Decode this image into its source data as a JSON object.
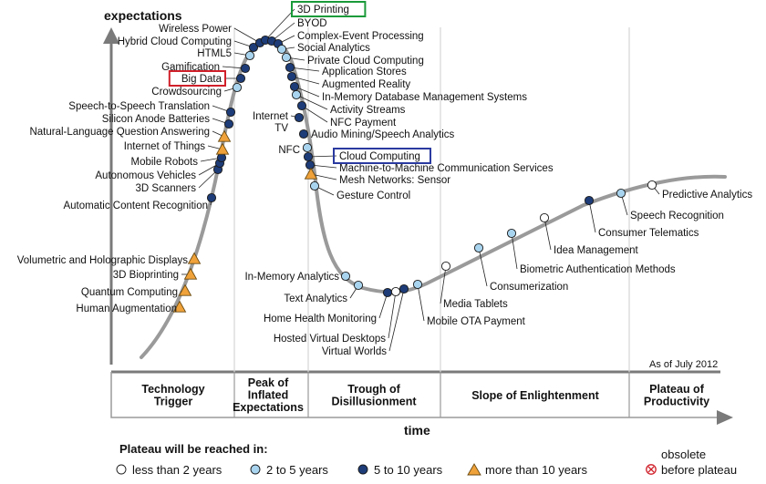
{
  "axes": {
    "y_label": "expectations",
    "x_label": "time"
  },
  "as_of": "As of July 2012",
  "phases": [
    {
      "lines": [
        "Technology",
        "Trigger"
      ]
    },
    {
      "lines": [
        "Peak of",
        "Inflated",
        "Expectations"
      ]
    },
    {
      "lines": [
        "Trough of",
        "Disillusionment"
      ]
    },
    {
      "lines": [
        "Slope of Enlightenment"
      ]
    },
    {
      "lines": [
        "Plateau of",
        "Productivity"
      ]
    }
  ],
  "legend": {
    "title": "Plateau will be reached in:",
    "items": [
      {
        "label": "less than 2 years",
        "marker": "circle-white"
      },
      {
        "label": "2 to 5 years",
        "marker": "circle-lightblue"
      },
      {
        "label": "5 to 10 years",
        "marker": "circle-darkblue"
      },
      {
        "label": "more than 10 years",
        "marker": "triangle-orange"
      }
    ],
    "obsolete_line1": "obsolete",
    "obsolete_line2": "before plateau",
    "obsolete_marker": "circled-x-red"
  },
  "colors": {
    "curve": "#9a9a9a",
    "axis": "#7a7a7a",
    "white_marker": "#ffffff",
    "light_blue": "#a9d4ef",
    "dark_blue": "#1d3c78",
    "orange": "#f0a23a",
    "red_obsolete": "#d0202a",
    "highlight_green": "#1a9a3a",
    "highlight_red": "#d0202a",
    "highlight_blue": "#2a3aa0"
  },
  "highlights": [
    {
      "tech": "3D Printing",
      "color": "green"
    },
    {
      "tech": "Big Data",
      "color": "red"
    },
    {
      "tech": "Cloud Computing",
      "color": "blue"
    }
  ],
  "technologies": [
    {
      "name": "Human Augmentation",
      "marker": "orange"
    },
    {
      "name": "Quantum Computing",
      "marker": "orange"
    },
    {
      "name": "3D Bioprinting",
      "marker": "orange"
    },
    {
      "name": "Volumetric and Holographic Displays",
      "marker": "orange"
    },
    {
      "name": "Automatic Content Recognition",
      "marker": "dark"
    },
    {
      "name": "3D Scanners",
      "marker": "dark"
    },
    {
      "name": "Autonomous Vehicles",
      "marker": "dark"
    },
    {
      "name": "Mobile Robots",
      "marker": "dark"
    },
    {
      "name": "Internet of Things",
      "marker": "orange"
    },
    {
      "name": "Natural-Language Question Answering",
      "marker": "orange"
    },
    {
      "name": "Silicon Anode Batteries",
      "marker": "dark"
    },
    {
      "name": "Speech-to-Speech Translation",
      "marker": "dark"
    },
    {
      "name": "Crowdsourcing",
      "marker": "light"
    },
    {
      "name": "Big Data",
      "marker": "dark"
    },
    {
      "name": "Gamification",
      "marker": "dark"
    },
    {
      "name": "HTML5",
      "marker": "light"
    },
    {
      "name": "Hybrid Cloud Computing",
      "marker": "dark"
    },
    {
      "name": "Wireless Power",
      "marker": "dark"
    },
    {
      "name": "3D Printing",
      "marker": "dark"
    },
    {
      "name": "BYOD",
      "marker": "dark"
    },
    {
      "name": "Complex-Event Processing",
      "marker": "dark"
    },
    {
      "name": "Social Analytics",
      "marker": "light"
    },
    {
      "name": "Private Cloud Computing",
      "marker": "light"
    },
    {
      "name": "Application Stores",
      "marker": "dark"
    },
    {
      "name": "Augmented Reality",
      "marker": "dark"
    },
    {
      "name": "In-Memory Database Management Systems",
      "marker": "dark"
    },
    {
      "name": "Activity Streams",
      "marker": "light"
    },
    {
      "name": "Internet TV",
      "marker": "dark"
    },
    {
      "name": "NFC Payment",
      "marker": "dark"
    },
    {
      "name": "Audio Mining/Speech Analytics",
      "marker": "dark"
    },
    {
      "name": "NFC",
      "marker": "light"
    },
    {
      "name": "Cloud Computing",
      "marker": "dark"
    },
    {
      "name": "Machine-to-Machine Communication Services",
      "marker": "dark"
    },
    {
      "name": "Mesh Networks: Sensor",
      "marker": "orange"
    },
    {
      "name": "Gesture Control",
      "marker": "light"
    },
    {
      "name": "In-Memory Analytics",
      "marker": "light"
    },
    {
      "name": "Text Analytics",
      "marker": "light"
    },
    {
      "name": "Home Health Monitoring",
      "marker": "dark"
    },
    {
      "name": "Hosted Virtual Desktops",
      "marker": "white"
    },
    {
      "name": "Virtual Worlds",
      "marker": "dark"
    },
    {
      "name": "Mobile OTA Payment",
      "marker": "light"
    },
    {
      "name": "Media Tablets",
      "marker": "white"
    },
    {
      "name": "Consumerization",
      "marker": "light"
    },
    {
      "name": "Biometric Authentication Methods",
      "marker": "light"
    },
    {
      "name": "Idea Management",
      "marker": "white"
    },
    {
      "name": "Consumer Telematics",
      "marker": "dark"
    },
    {
      "name": "Speech Recognition",
      "marker": "light"
    },
    {
      "name": "Predictive Analytics",
      "marker": "white"
    }
  ]
}
